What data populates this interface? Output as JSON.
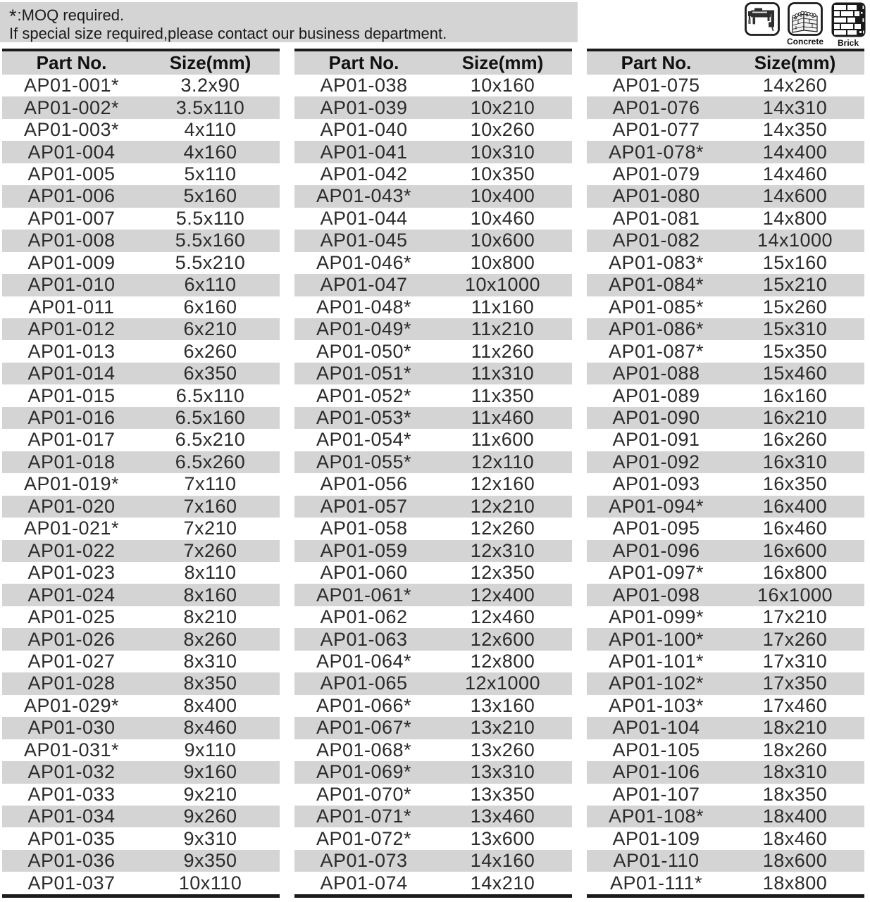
{
  "note": {
    "star": "*",
    "line1": ":MOQ required.",
    "line2": "If special size required,please contact our business department."
  },
  "icons": [
    {
      "name": "hammer-drill",
      "label": ""
    },
    {
      "name": "concrete",
      "label": "Concrete"
    },
    {
      "name": "brick",
      "label": "Brick"
    }
  ],
  "colors": {
    "row_alt_gray": "#d4d4d4",
    "note_bg_gray": "#d4d4d4",
    "table_border_black": "#1b1b1b",
    "text_dark": "#2b2b2b"
  },
  "tables": [
    {
      "headers": [
        "Part No.",
        "Size(mm)"
      ],
      "rows": [
        [
          "AP01-001*",
          "3.2x90"
        ],
        [
          "AP01-002*",
          "3.5x110"
        ],
        [
          "AP01-003*",
          "4x110"
        ],
        [
          "AP01-004",
          "4x160"
        ],
        [
          "AP01-005",
          "5x110"
        ],
        [
          "AP01-006",
          "5x160"
        ],
        [
          "AP01-007",
          "5.5x110"
        ],
        [
          "AP01-008",
          "5.5x160"
        ],
        [
          "AP01-009",
          "5.5x210"
        ],
        [
          "AP01-010",
          "6x110"
        ],
        [
          "AP01-011",
          "6x160"
        ],
        [
          "AP01-012",
          "6x210"
        ],
        [
          "AP01-013",
          "6x260"
        ],
        [
          "AP01-014",
          "6x350"
        ],
        [
          "AP01-015",
          "6.5x110"
        ],
        [
          "AP01-016",
          "6.5x160"
        ],
        [
          "AP01-017",
          "6.5x210"
        ],
        [
          "AP01-018",
          "6.5x260"
        ],
        [
          "AP01-019*",
          "7x110"
        ],
        [
          "AP01-020",
          "7x160"
        ],
        [
          "AP01-021*",
          "7x210"
        ],
        [
          "AP01-022",
          "7x260"
        ],
        [
          "AP01-023",
          "8x110"
        ],
        [
          "AP01-024",
          "8x160"
        ],
        [
          "AP01-025",
          "8x210"
        ],
        [
          "AP01-026",
          "8x260"
        ],
        [
          "AP01-027",
          "8x310"
        ],
        [
          "AP01-028",
          "8x350"
        ],
        [
          "AP01-029*",
          "8x400"
        ],
        [
          "AP01-030",
          "8x460"
        ],
        [
          "AP01-031*",
          "9x110"
        ],
        [
          "AP01-032",
          "9x160"
        ],
        [
          "AP01-033",
          "9x210"
        ],
        [
          "AP01-034",
          "9x260"
        ],
        [
          "AP01-035",
          "9x310"
        ],
        [
          "AP01-036",
          "9x350"
        ],
        [
          "AP01-037",
          "10x110"
        ]
      ]
    },
    {
      "headers": [
        "Part No.",
        "Size(mm)"
      ],
      "rows": [
        [
          "AP01-038",
          "10x160"
        ],
        [
          "AP01-039",
          "10x210"
        ],
        [
          "AP01-040",
          "10x260"
        ],
        [
          "AP01-041",
          "10x310"
        ],
        [
          "AP01-042",
          "10x350"
        ],
        [
          "AP01-043*",
          "10x400"
        ],
        [
          "AP01-044",
          "10x460"
        ],
        [
          "AP01-045",
          "10x600"
        ],
        [
          "AP01-046*",
          "10x800"
        ],
        [
          "AP01-047",
          "10x1000"
        ],
        [
          "AP01-048*",
          "11x160"
        ],
        [
          "AP01-049*",
          "11x210"
        ],
        [
          "AP01-050*",
          "11x260"
        ],
        [
          "AP01-051*",
          "11x310"
        ],
        [
          "AP01-052*",
          "11x350"
        ],
        [
          "AP01-053*",
          "11x460"
        ],
        [
          "AP01-054*",
          "11x600"
        ],
        [
          "AP01-055*",
          "12x110"
        ],
        [
          "AP01-056",
          "12x160"
        ],
        [
          "AP01-057",
          "12x210"
        ],
        [
          "AP01-058",
          "12x260"
        ],
        [
          "AP01-059",
          "12x310"
        ],
        [
          "AP01-060",
          "12x350"
        ],
        [
          "AP01-061*",
          "12x400"
        ],
        [
          "AP01-062",
          "12x460"
        ],
        [
          "AP01-063",
          "12x600"
        ],
        [
          "AP01-064*",
          "12x800"
        ],
        [
          "AP01-065",
          "12x1000"
        ],
        [
          "AP01-066*",
          "13x160"
        ],
        [
          "AP01-067*",
          "13x210"
        ],
        [
          "AP01-068*",
          "13x260"
        ],
        [
          "AP01-069*",
          "13x310"
        ],
        [
          "AP01-070*",
          "13x350"
        ],
        [
          "AP01-071*",
          "13x460"
        ],
        [
          "AP01-072*",
          "13x600"
        ],
        [
          "AP01-073",
          "14x160"
        ],
        [
          "AP01-074",
          "14x210"
        ]
      ]
    },
    {
      "headers": [
        "Part No.",
        "Size(mm)"
      ],
      "rows": [
        [
          "AP01-075",
          "14x260"
        ],
        [
          "AP01-076",
          "14x310"
        ],
        [
          "AP01-077",
          "14x350"
        ],
        [
          "AP01-078*",
          "14x400"
        ],
        [
          "AP01-079",
          "14x460"
        ],
        [
          "AP01-080",
          "14x600"
        ],
        [
          "AP01-081",
          "14x800"
        ],
        [
          "AP01-082",
          "14x1000"
        ],
        [
          "AP01-083*",
          "15x160"
        ],
        [
          "AP01-084*",
          "15x210"
        ],
        [
          "AP01-085*",
          "15x260"
        ],
        [
          "AP01-086*",
          "15x310"
        ],
        [
          "AP01-087*",
          "15x350"
        ],
        [
          "AP01-088",
          "15x460"
        ],
        [
          "AP01-089",
          "16x160"
        ],
        [
          "AP01-090",
          "16x210"
        ],
        [
          "AP01-091",
          "16x260"
        ],
        [
          "AP01-092",
          "16x310"
        ],
        [
          "AP01-093",
          "16x350"
        ],
        [
          "AP01-094*",
          "16x400"
        ],
        [
          "AP01-095",
          "16x460"
        ],
        [
          "AP01-096",
          "16x600"
        ],
        [
          "AP01-097*",
          "16x800"
        ],
        [
          "AP01-098",
          "16x1000"
        ],
        [
          "AP01-099*",
          "17x210"
        ],
        [
          "AP01-100*",
          "17x260"
        ],
        [
          "AP01-101*",
          "17x310"
        ],
        [
          "AP01-102*",
          "17x350"
        ],
        [
          "AP01-103*",
          "17x460"
        ],
        [
          "AP01-104",
          "18x210"
        ],
        [
          "AP01-105",
          "18x260"
        ],
        [
          "AP01-106",
          "18x310"
        ],
        [
          "AP01-107",
          "18x350"
        ],
        [
          "AP01-108*",
          "18x400"
        ],
        [
          "AP01-109",
          "18x460"
        ],
        [
          "AP01-110",
          "18x600"
        ],
        [
          "AP01-111*",
          "18x800"
        ]
      ]
    }
  ]
}
